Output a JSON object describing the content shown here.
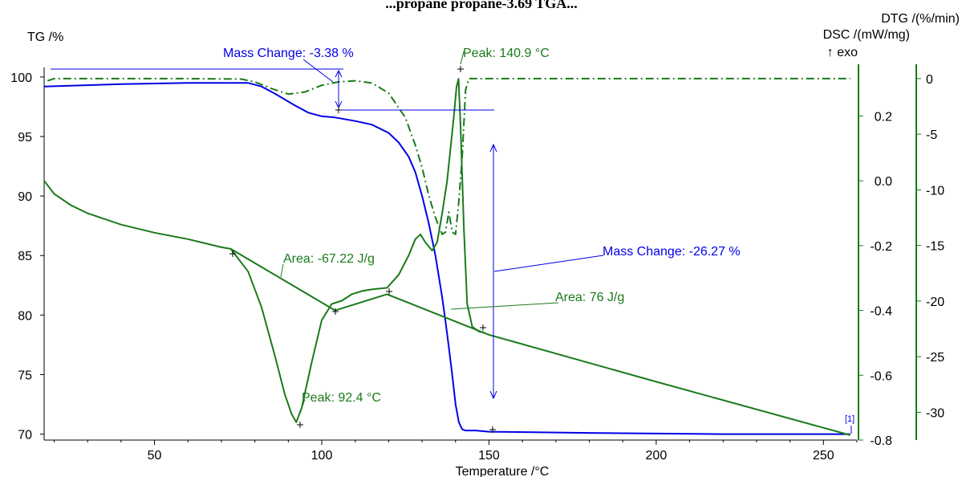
{
  "chart_data": {
    "type": "line",
    "title": "...propane propane-3.69 TGA...",
    "xlabel": "Temperature /°C",
    "xlim": [
      17,
      260
    ],
    "xticks": [
      50,
      100,
      150,
      200,
      250
    ],
    "axes": {
      "tg": {
        "label": "TG /%",
        "lim": [
          69.5,
          100.8
        ],
        "ticks": [
          70,
          75,
          80,
          85,
          90,
          95,
          100
        ],
        "color": "#000000"
      },
      "dsc": {
        "label": "DSC /(mW/mg)",
        "lim": [
          -0.8,
          0.35
        ],
        "ticks": [
          "0.2",
          "0.0",
          "-0.2",
          "-0.4",
          "-0.6",
          "-0.8"
        ],
        "tick_values": [
          0.2,
          0.0,
          -0.2,
          -0.4,
          -0.6,
          -0.8
        ],
        "exo_label": "↑ exo",
        "color": "#1a7a1a"
      },
      "dtg": {
        "label": "DTG /(%/min)",
        "lim": [
          -32.5,
          1.0
        ],
        "ticks": [
          "0",
          "-5",
          "-10",
          "-15",
          "-20",
          "-25",
          "-30"
        ],
        "tick_values": [
          0,
          -5,
          -10,
          -15,
          -20,
          -25,
          -30
        ],
        "color": "#1a7a1a"
      }
    },
    "series": [
      {
        "axis": "tg",
        "color": "#0000e6",
        "style": "solid",
        "x": [
          17,
          40,
          60,
          78,
          82,
          86,
          92,
          96,
          100,
          104,
          110,
          115,
          120,
          123,
          126,
          128,
          130,
          132,
          134,
          136,
          137,
          138,
          139,
          140,
          141,
          142,
          143,
          146,
          150,
          180,
          220,
          258
        ],
        "y": [
          99.2,
          99.4,
          99.5,
          99.5,
          99.2,
          98.6,
          97.6,
          97.0,
          96.7,
          96.6,
          96.3,
          96.0,
          95.3,
          94.5,
          93.3,
          92.0,
          90.0,
          87.7,
          85.0,
          81.5,
          79.5,
          77.3,
          75.0,
          72.5,
          71.0,
          70.4,
          70.3,
          70.3,
          70.2,
          70.1,
          70.0,
          70.0
        ]
      },
      {
        "axis": "dsc",
        "color": "#1a7a1a",
        "style": "solid",
        "x": [
          17,
          20,
          25,
          30,
          40,
          50,
          60,
          70,
          72.8,
          78,
          82,
          86,
          89,
          91,
          92.4,
          94,
          97,
          100,
          103,
          106,
          109,
          112,
          115,
          119.5,
          123,
          126,
          128,
          129.5,
          131,
          133,
          134.5,
          136,
          137.5,
          138.5,
          139.5,
          140.3,
          140.9,
          141.5,
          142.5,
          143.5,
          145,
          147,
          149
        ],
        "y": [
          0.0,
          -0.04,
          -0.075,
          -0.1,
          -0.135,
          -0.16,
          -0.18,
          -0.205,
          -0.21,
          -0.28,
          -0.39,
          -0.54,
          -0.66,
          -0.72,
          -0.745,
          -0.7,
          -0.56,
          -0.43,
          -0.38,
          -0.37,
          -0.35,
          -0.34,
          -0.335,
          -0.33,
          -0.29,
          -0.23,
          -0.18,
          -0.165,
          -0.19,
          -0.215,
          -0.19,
          -0.1,
          0.0,
          0.1,
          0.2,
          0.29,
          0.315,
          0.17,
          -0.15,
          -0.38,
          -0.45,
          -0.465,
          -0.47
        ]
      },
      {
        "axis": "dsc",
        "color": "#1a7a1a",
        "style": "solid",
        "x": [
          72.8,
          104,
          119.5,
          150,
          200,
          258
        ],
        "y": [
          -0.21,
          -0.4,
          -0.35,
          -0.475,
          -0.62,
          -0.785
        ]
      },
      {
        "axis": "dtg",
        "color": "#1a7a1a",
        "style": "dashdot",
        "x": [
          18,
          20,
          30,
          60,
          76,
          80,
          85,
          90,
          95,
          100,
          105,
          110,
          115,
          120,
          125,
          128,
          130,
          132,
          134,
          136,
          137,
          138,
          139,
          140,
          141,
          142,
          143,
          144,
          146,
          150,
          200,
          258
        ],
        "y": [
          -0.2,
          0,
          0,
          0,
          -0.05,
          -0.3,
          -0.9,
          -1.4,
          -1.2,
          -0.6,
          -0.3,
          -0.2,
          -0.4,
          -1.3,
          -3.5,
          -6.0,
          -8.0,
          -10.5,
          -12.5,
          -14.0,
          -13.8,
          -12.0,
          -13.8,
          -14.0,
          -11.0,
          -7.0,
          -1.0,
          0.0,
          0.0,
          0.0,
          0.0,
          0.0
        ]
      }
    ],
    "annotations": [
      {
        "text": "Mass Change: -3.38 %",
        "color": "#0000e6"
      },
      {
        "text": "Peak: 140.9 °C",
        "color": "#1a7a1a"
      },
      {
        "text": "Area: -67.22 J/g",
        "color": "#1a7a1a"
      },
      {
        "text": "Mass Change: -26.27 %",
        "color": "#0000e6"
      },
      {
        "text": "Area: 76 J/g",
        "color": "#1a7a1a"
      },
      {
        "text": "Peak: 92.4 °C",
        "color": "#1a7a1a"
      },
      {
        "text": "[1]",
        "color": "#0000e6"
      }
    ]
  }
}
